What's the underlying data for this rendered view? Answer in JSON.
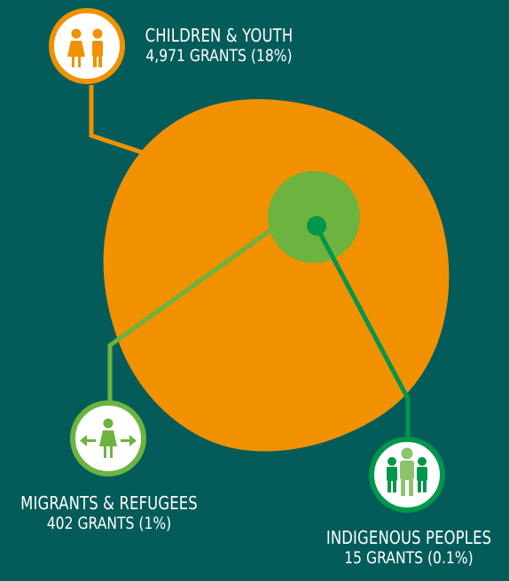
{
  "colors": {
    "background": "#035c5a",
    "children": "#f29100",
    "migrants": "#6cb33f",
    "indigenous": "#00964b",
    "text": "#ffffff"
  },
  "groups": {
    "children": {
      "name": "CHILDREN & YOUTH",
      "count": "4,971 GRANTS (18%)",
      "icon": "girl-and-boy-icon"
    },
    "migrants": {
      "name": "MIGRANTS & REFUGEES",
      "count": "402 GRANTS (1%)",
      "icon": "person-with-arrows-icon"
    },
    "indigenous": {
      "name": "INDIGENOUS PEOPLES",
      "count": "15 GRANTS (0.1%)",
      "icon": "group-of-people-icon"
    }
  }
}
